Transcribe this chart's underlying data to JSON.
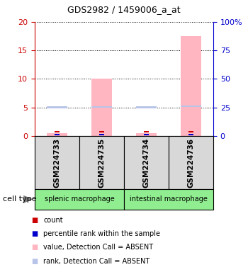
{
  "title": "GDS2982 / 1459006_a_at",
  "samples": [
    "GSM224733",
    "GSM224735",
    "GSM224734",
    "GSM224736"
  ],
  "group_labels": [
    "splenic macrophage",
    "intestinal macrophage"
  ],
  "values": [
    0.5,
    10.1,
    0.5,
    17.5
  ],
  "ranks": [
    5.0,
    5.1,
    5.0,
    5.2
  ],
  "count_values": [
    0.8,
    0.8,
    0.8,
    0.8
  ],
  "percentile_values": [
    0.55,
    0.55,
    0.55,
    0.55
  ],
  "ylim_left": [
    0,
    20
  ],
  "ylim_right": [
    0,
    100
  ],
  "yticks_left": [
    0,
    5,
    10,
    15,
    20
  ],
  "yticks_right": [
    0,
    25,
    50,
    75,
    100
  ],
  "bar_color": "#ffb6c1",
  "rank_color": "#b8c4e8",
  "count_color": "#cc0000",
  "percentile_color": "#0000cc",
  "bg_color": "#d8d8d8",
  "group_color": "#90ee90",
  "left_axis_color": "#cc0000",
  "right_axis_color": "#0000cc",
  "cell_type_label": "cell type",
  "legend_items": [
    {
      "label": "count",
      "color": "#cc0000"
    },
    {
      "label": "percentile rank within the sample",
      "color": "#0000cc"
    },
    {
      "label": "value, Detection Call = ABSENT",
      "color": "#ffb6c1"
    },
    {
      "label": "rank, Detection Call = ABSENT",
      "color": "#b8c4e8"
    }
  ]
}
